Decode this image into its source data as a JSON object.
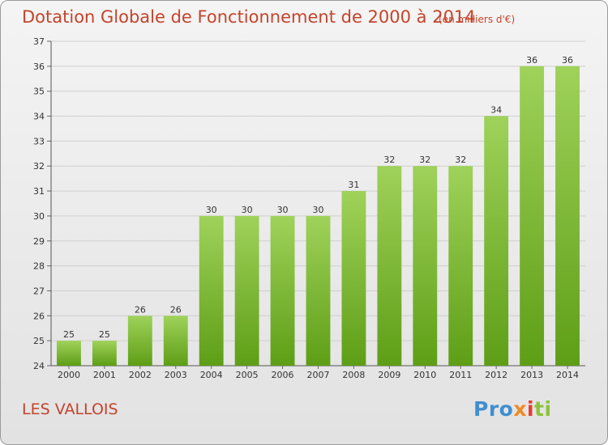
{
  "header": {
    "title": "Dotation Globale de Fonctionnement de 2000 à 2014",
    "subtitle": "(en milliers d'€)"
  },
  "footer": {
    "commune": "LES VALLOIS",
    "logo_parts": [
      "Pro",
      "x",
      "i",
      "ti"
    ]
  },
  "colors": {
    "title": "#c4442b",
    "bar_top": "#9fd25a",
    "bar_bottom": "#5e9e16",
    "grid": "#cfcfcf"
  },
  "chart_data": {
    "type": "bar",
    "title": "Dotation Globale de Fonctionnement de 2000 à 2014",
    "subtitle": "(en milliers d'€)",
    "categories": [
      "2000",
      "2001",
      "2002",
      "2003",
      "2004",
      "2005",
      "2006",
      "2007",
      "2008",
      "2009",
      "2010",
      "2011",
      "2012",
      "2013",
      "2014"
    ],
    "values": [
      25,
      25,
      26,
      26,
      30,
      30,
      30,
      30,
      31,
      32,
      32,
      32,
      34,
      36,
      36
    ],
    "xlabel": "",
    "ylabel": "",
    "ylim": [
      24,
      37
    ],
    "yticks": [
      24,
      25,
      26,
      27,
      28,
      29,
      30,
      31,
      32,
      33,
      34,
      35,
      36,
      37
    ],
    "grid": true,
    "legend": "none"
  }
}
